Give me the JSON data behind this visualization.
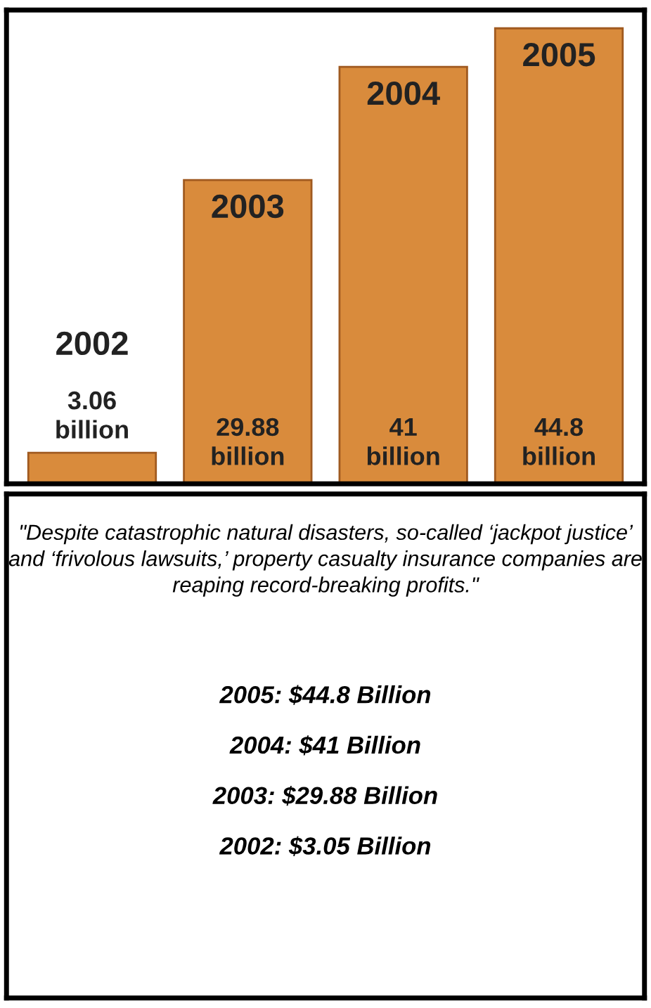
{
  "chart_data": {
    "type": "bar",
    "categories": [
      "2002",
      "2003",
      "2004",
      "2005"
    ],
    "values": [
      3.06,
      29.88,
      41,
      44.8
    ],
    "value_labels": [
      "3.06 billion",
      "29.88 billion",
      "41 billion",
      "44.8 billion"
    ],
    "color": "#d98b3c",
    "annotations": [
      "\"Despite catastrophic natural disasters, so-called ‘jackpot justice’ and ‘frivolous lawsuits,’ property casualty insurance companies are reaping record-breaking profits.\"",
      "2005: $44.8 Billion",
      "2004: $41 Billion",
      "2003: $29.88 Billion",
      "2002: $3.05 Billion"
    ]
  }
}
